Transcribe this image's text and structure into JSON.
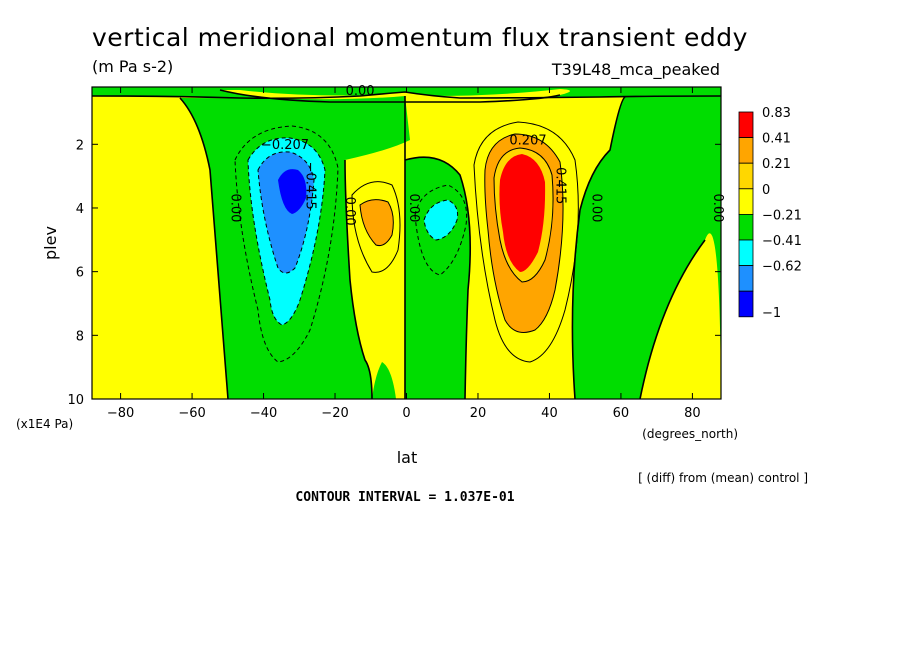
{
  "chart_data": {
    "type": "heatmap",
    "title": "vertical meridional momentum flux transient eddy",
    "units": "(m Pa s-2)",
    "experiment": "T39L48_mca_peaked",
    "xlabel": "lat",
    "xunits": "(degrees_north)",
    "ylabel": "plev",
    "yunits": "(x1E4 Pa)",
    "xlim": [
      -88,
      88
    ],
    "ylim": [
      10,
      0.2
    ],
    "x_ticks": [
      -80,
      -60,
      -40,
      -20,
      0,
      20,
      40,
      60,
      80
    ],
    "x_tick_labels": [
      "−80",
      "−60",
      "−40",
      "−20",
      "0",
      "20",
      "40",
      "60",
      "80"
    ],
    "y_ticks": [
      2,
      4,
      6,
      8,
      10
    ],
    "y_tick_labels": [
      "2",
      "4",
      "6",
      "8",
      "10"
    ],
    "colorbar": {
      "levels": [
        {
          "label": "0.83",
          "color": "#ff0000"
        },
        {
          "label": "0.41",
          "color": "#ffa500"
        },
        {
          "label": "0.21",
          "color": "#ffd700"
        },
        {
          "label": "0",
          "color": "#ffff00"
        },
        {
          "label": "−0.21",
          "color": "#00dd00"
        },
        {
          "label": "−0.41",
          "color": "#00ffff"
        },
        {
          "label": "−0.62",
          "color": "#1e90ff"
        },
        {
          "label": "−1",
          "color": "#0000ff"
        }
      ]
    },
    "contour_labels": [
      {
        "text": "0.00",
        "lat": -49,
        "plev": 4.0
      },
      {
        "text": "0.00",
        "lat": -17,
        "plev": 4.1
      },
      {
        "text": "0.00",
        "lat": 1,
        "plev": 4.0
      },
      {
        "text": "0.00",
        "lat": 52,
        "plev": 4.0
      },
      {
        "text": "0.00",
        "lat": 86,
        "plev": 4.0
      },
      {
        "text": "0.00",
        "lat": -13,
        "plev": 0.45
      },
      {
        "text": "−0.207",
        "lat": -34,
        "plev": 2.15
      },
      {
        "text": "−0.415",
        "lat": -28,
        "plev": 3.3
      },
      {
        "text": "0.207",
        "lat": 34,
        "plev": 2.0
      },
      {
        "text": "0.415",
        "lat": 42,
        "plev": 3.3
      }
    ],
    "contour_interval": "CONTOUR INTERVAL = 1.037E-01",
    "note": "[ (diff) from (mean) control ]"
  },
  "colors": {
    "yellow": "#ffff00",
    "green": "#00dd00",
    "orange": "#ffa500",
    "red": "#ff0000",
    "cyan": "#00ffff",
    "lightblue": "#1e90ff",
    "gold": "#ffd700"
  }
}
